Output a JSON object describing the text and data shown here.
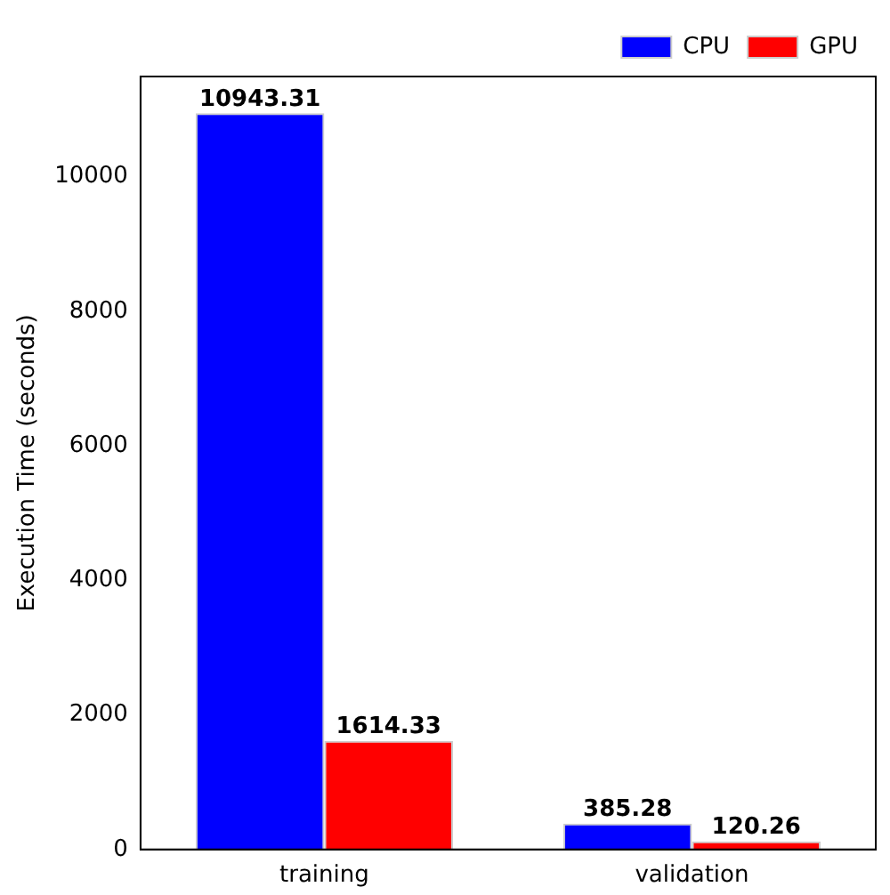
{
  "chart_data": {
    "type": "bar",
    "ylabel": "Execution Time (seconds)",
    "categories": [
      "training",
      "validation"
    ],
    "series": [
      {
        "name": "CPU",
        "color": "#0000ff",
        "values": [
          10943.31,
          385.28
        ]
      },
      {
        "name": "GPU",
        "color": "#ff0000",
        "values": [
          1614.33,
          120.26
        ]
      }
    ],
    "ylim": [
      0,
      11490
    ],
    "yticks": [
      0,
      2000,
      4000,
      6000,
      8000,
      10000
    ],
    "data_labels": true,
    "legend": "top right",
    "grid": false
  }
}
